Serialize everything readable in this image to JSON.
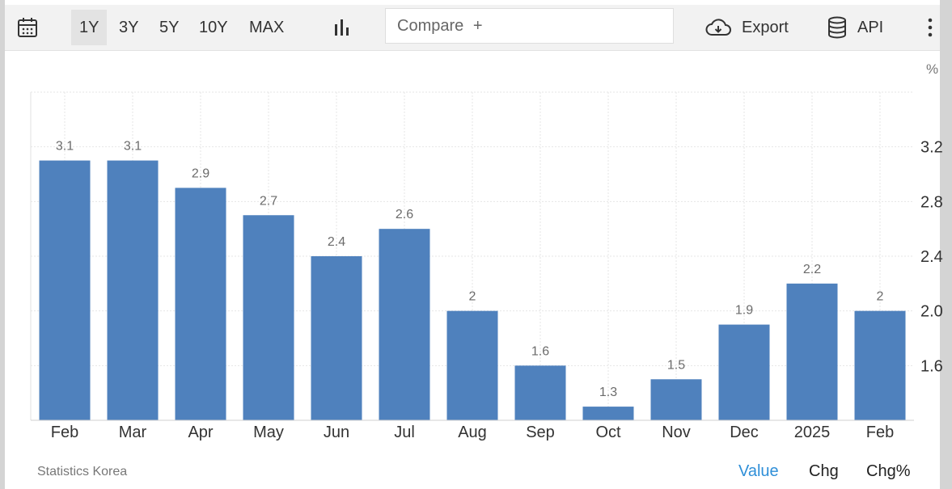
{
  "toolbar": {
    "ranges": [
      "1Y",
      "3Y",
      "5Y",
      "10Y",
      "MAX"
    ],
    "active_range": "1Y",
    "compare_placeholder": "Compare",
    "compare_plus": "+",
    "export_label": "Export",
    "api_label": "API"
  },
  "footer": {
    "source": "Statistics Korea",
    "views": [
      "Value",
      "Chg",
      "Chg%"
    ],
    "active_view": "Value"
  },
  "accent_color": "#2f8fd8",
  "bar_color": "#4f81bd",
  "chart_data": {
    "type": "bar",
    "categories": [
      "Feb",
      "Mar",
      "Apr",
      "May",
      "Jun",
      "Jul",
      "Aug",
      "Sep",
      "Oct",
      "Nov",
      "Dec",
      "2025",
      "Feb"
    ],
    "values": [
      3.1,
      3.1,
      2.9,
      2.7,
      2.4,
      2.6,
      2.0,
      1.6,
      1.3,
      1.5,
      1.9,
      2.2,
      2.0
    ],
    "value_labels": [
      "3.1",
      "3.1",
      "2.9",
      "2.7",
      "2.4",
      "2.6",
      "2",
      "1.6",
      "1.3",
      "1.5",
      "1.9",
      "2.2",
      "2"
    ],
    "unit": "%",
    "y_ticks": [
      "3.2",
      "2.8",
      "2.4",
      "2.0",
      "1.6"
    ],
    "ylim": [
      1.2,
      3.6
    ],
    "grid": true,
    "y_axis_side": "right"
  }
}
